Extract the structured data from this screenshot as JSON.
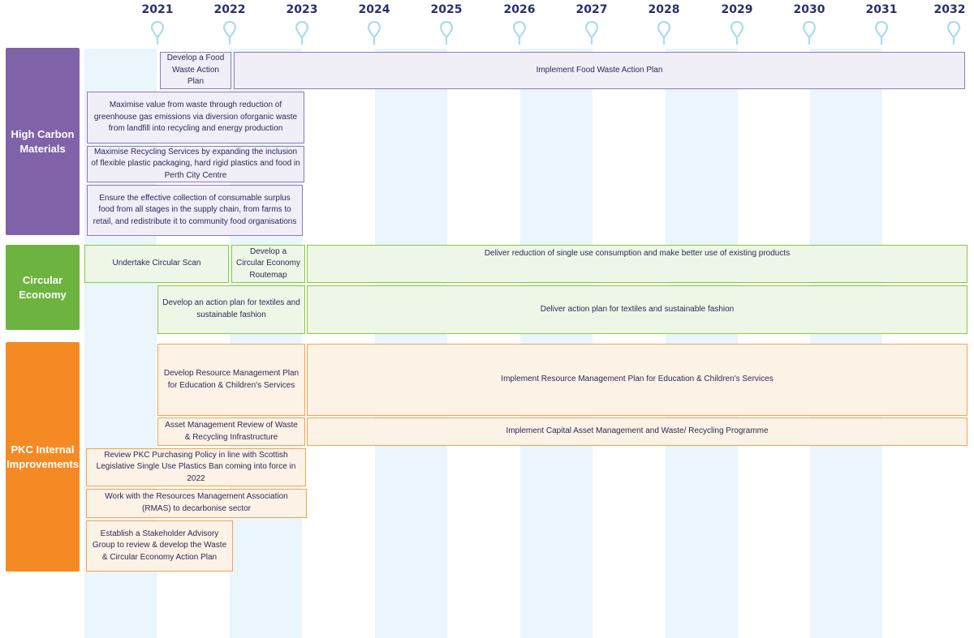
{
  "colors": {
    "stripe": "#eaf5fc",
    "pin": "#a8dcf0",
    "year_text": "#2a2f6a",
    "high_carbon": "#8062a9",
    "circular": "#6cb33f",
    "pkc": "#f58a24"
  },
  "years": [
    "2021",
    "2022",
    "2023",
    "2024",
    "2025",
    "2026",
    "2027",
    "2028",
    "2029",
    "2030",
    "2031",
    "2032"
  ],
  "categories": [
    {
      "label": "High Carbon Materials",
      "color": "#8062a9"
    },
    {
      "label": "Circular Economy",
      "color": "#6cb33f"
    },
    {
      "label": "PKC Internal Improvements",
      "color": "#f58a24"
    }
  ],
  "tasks": [
    {
      "text": "Develop a Food Waste Action Plan",
      "group": "High Carbon Materials"
    },
    {
      "text": "Implement Food Waste Action Plan",
      "group": "High Carbon Materials"
    },
    {
      "text": "Maximise value from waste through reduction of greenhouse gas emissions via diversion oforganic waste from landfill into recycling and energy production",
      "group": "High Carbon Materials"
    },
    {
      "text": "Maximise Recycling Services by expanding the inclusion of flexible plastic packaging, hard rigid plastics and food in Perth City Centre",
      "group": "High Carbon Materials"
    },
    {
      "text": "Ensure the effective collection of consumable surplus food from all stages in the supply chain, from farms to retail, and redistribute it to community food organisations",
      "group": "High Carbon Materials"
    },
    {
      "text": "Undertake Circular Scan",
      "group": "Circular Economy"
    },
    {
      "text": "Develop a Circular Economy Routemap",
      "group": "Circular Economy"
    },
    {
      "text": "Deliver reduction of single use consumption and make better use of existing products",
      "group": "Circular Economy"
    },
    {
      "text": "Develop an action plan for textiles and sustainable fashion",
      "group": "Circular Economy"
    },
    {
      "text": "Deliver action plan for textiles and sustainable fashion",
      "group": "Circular Economy"
    },
    {
      "text": "Develop Resource Management Plan for Education & Children's Services",
      "group": "PKC Internal Improvements"
    },
    {
      "text": "Implement Resource Management Plan for Education & Children's Services",
      "group": "PKC Internal Improvements"
    },
    {
      "text": "Asset Management Review of Waste & Recycling Infrastructure",
      "group": "PKC Internal Improvements"
    },
    {
      "text": "Implement Capital Asset Management and Waste/ Recycling Programme",
      "group": "PKC Internal Improvements"
    },
    {
      "text": "Review PKC Purchasing Policy in line with Scottish Legislative Single Use Plastics Ban coming into force in 2022",
      "group": "PKC Internal Improvements"
    },
    {
      "text": "Work with the Resources Management Association (RMAS) to decarbonise sector",
      "group": "PKC Internal Improvements"
    },
    {
      "text": "Establish a Stakeholder Advisory Group to review & develop the Waste & Circular Economy Action Plan",
      "group": "PKC Internal Improvements"
    }
  ]
}
